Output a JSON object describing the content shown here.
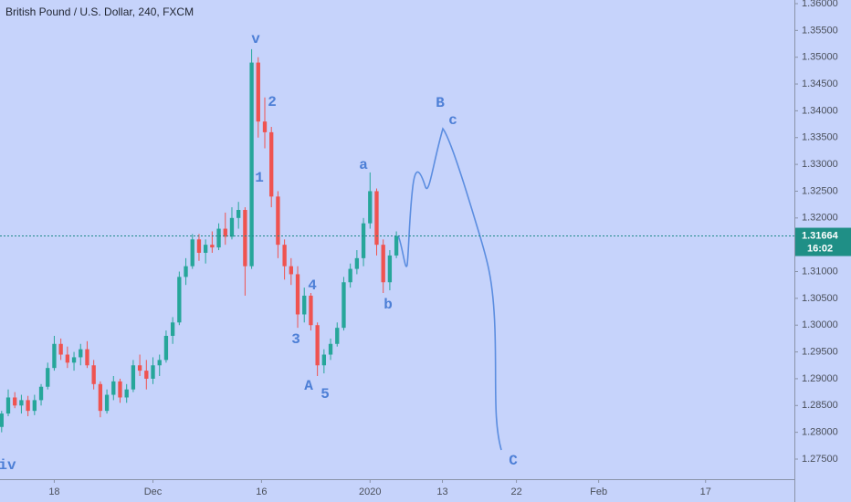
{
  "chart_data": {
    "type": "candlestick",
    "title": "British Pound / U.S. Dollar, 240, FXCM",
    "up_color": "#26a69a",
    "down_color": "#ef5350",
    "grid": false,
    "x": [
      -32,
      -28,
      -24,
      -20,
      -16,
      -12,
      -8,
      -4,
      0,
      4,
      8,
      12,
      16,
      20,
      24,
      28,
      32,
      36,
      40,
      44,
      48,
      52,
      56,
      60,
      64,
      68,
      72,
      76,
      80,
      84,
      88,
      92,
      96,
      100,
      104,
      108,
      112,
      116,
      120,
      124,
      128,
      132,
      136,
      140,
      144,
      148,
      152,
      156,
      160,
      164,
      168,
      172,
      176,
      180,
      184,
      188,
      192,
      196,
      200,
      204,
      208
    ],
    "open": [
      1.281,
      1.2835,
      1.2865,
      1.285,
      1.286,
      1.284,
      1.286,
      1.2885,
      1.292,
      1.2965,
      1.2945,
      1.293,
      1.294,
      1.2955,
      1.2925,
      1.289,
      1.284,
      1.287,
      1.2895,
      1.2865,
      1.288,
      1.2925,
      1.2915,
      1.29,
      1.2925,
      1.2935,
      1.298,
      1.3005,
      1.309,
      1.311,
      1.316,
      1.3135,
      1.315,
      1.3145,
      1.318,
      1.3165,
      1.32,
      1.3215,
      1.311,
      1.349,
      1.338,
      1.336,
      1.324,
      1.315,
      1.311,
      1.3095,
      1.302,
      1.3055,
      1.3,
      1.2925,
      1.2945,
      1.2965,
      1.2995,
      1.308,
      1.3105,
      1.3125,
      1.319,
      1.325,
      1.315,
      1.308,
      1.313
    ],
    "high": [
      1.284,
      1.288,
      1.2875,
      1.287,
      1.2868,
      1.287,
      1.289,
      1.293,
      1.298,
      1.2975,
      1.296,
      1.295,
      1.2965,
      1.297,
      1.2935,
      1.2895,
      1.288,
      1.2905,
      1.29,
      1.289,
      1.2935,
      1.2945,
      1.2935,
      1.294,
      1.2945,
      1.299,
      1.3015,
      1.31,
      1.3125,
      1.317,
      1.317,
      1.316,
      1.3175,
      1.319,
      1.321,
      1.322,
      1.323,
      1.322,
      1.3515,
      1.35,
      1.3425,
      1.337,
      1.325,
      1.316,
      1.3125,
      1.311,
      1.307,
      1.306,
      1.3005,
      1.2955,
      1.2975,
      1.3005,
      1.309,
      1.3115,
      1.314,
      1.32,
      1.3285,
      1.3255,
      1.316,
      1.314,
      1.3175
    ],
    "low": [
      1.28,
      1.283,
      1.2845,
      1.2835,
      1.283,
      1.2832,
      1.285,
      1.288,
      1.2915,
      1.2935,
      1.292,
      1.2915,
      1.2925,
      1.292,
      1.288,
      1.2828,
      1.2835,
      1.286,
      1.2855,
      1.2855,
      1.2875,
      1.2905,
      1.288,
      1.289,
      1.2905,
      1.293,
      1.2965,
      1.3,
      1.3075,
      1.3105,
      1.312,
      1.3115,
      1.3135,
      1.314,
      1.315,
      1.316,
      1.318,
      1.3055,
      1.3105,
      1.335,
      1.333,
      1.322,
      1.3125,
      1.3085,
      1.3075,
      1.2995,
      1.3005,
      1.299,
      1.2905,
      1.291,
      1.2935,
      1.296,
      1.299,
      1.307,
      1.3095,
      1.311,
      1.318,
      1.313,
      1.306,
      1.3065,
      1.3125
    ],
    "close": [
      1.2835,
      1.2865,
      1.285,
      1.286,
      1.284,
      1.286,
      1.2885,
      1.292,
      1.2965,
      1.2945,
      1.293,
      1.294,
      1.2955,
      1.2925,
      1.289,
      1.284,
      1.287,
      1.2895,
      1.2865,
      1.288,
      1.2925,
      1.2915,
      1.29,
      1.2925,
      1.2935,
      1.298,
      1.3005,
      1.309,
      1.311,
      1.316,
      1.3135,
      1.315,
      1.3145,
      1.318,
      1.3165,
      1.32,
      1.3215,
      1.311,
      1.349,
      1.338,
      1.336,
      1.324,
      1.315,
      1.311,
      1.3095,
      1.302,
      1.3055,
      1.3,
      1.2925,
      1.2945,
      1.2965,
      1.2995,
      1.308,
      1.3105,
      1.3125,
      1.319,
      1.325,
      1.315,
      1.308,
      1.313,
      1.3166
    ],
    "xlim": [
      -33,
      450
    ],
    "xticks": [
      {
        "value": 0,
        "label": "18"
      },
      {
        "value": 60,
        "label": "Dec"
      },
      {
        "value": 126,
        "label": "16"
      },
      {
        "value": 192,
        "label": "2020"
      },
      {
        "value": 236,
        "label": "13"
      },
      {
        "value": 281,
        "label": "22"
      },
      {
        "value": 331,
        "label": "Feb"
      },
      {
        "value": 396,
        "label": "17"
      }
    ],
    "ylim": [
      1.27125,
      1.36068
    ],
    "yticks": [
      {
        "value": 1.275,
        "label": "1.27500"
      },
      {
        "value": 1.28,
        "label": "1.28000"
      },
      {
        "value": 1.285,
        "label": "1.28500"
      },
      {
        "value": 1.29,
        "label": "1.29000"
      },
      {
        "value": 1.295,
        "label": "1.29500"
      },
      {
        "value": 1.3,
        "label": "1.30000"
      },
      {
        "value": 1.305,
        "label": "1.30500"
      },
      {
        "value": 1.31,
        "label": "1.31000"
      },
      {
        "value": 1.315,
        "label": "1.31500"
      },
      {
        "value": 1.32,
        "label": "1.32000"
      },
      {
        "value": 1.325,
        "label": "1.32500"
      },
      {
        "value": 1.33,
        "label": "1.33000"
      },
      {
        "value": 1.335,
        "label": "1.33500"
      },
      {
        "value": 1.34,
        "label": "1.34000"
      },
      {
        "value": 1.345,
        "label": "1.34500"
      },
      {
        "value": 1.35,
        "label": "1.35000"
      },
      {
        "value": 1.355,
        "label": "1.35500"
      },
      {
        "value": 1.36,
        "label": "1.36000"
      }
    ],
    "last_price": {
      "value": 1.31664,
      "label": "1.31664"
    },
    "countdown": "16:02",
    "annotations": [
      "v",
      "2",
      "1",
      "a",
      "4",
      "3",
      "b",
      "A",
      "5",
      "B",
      "c",
      "C",
      "iv"
    ]
  }
}
